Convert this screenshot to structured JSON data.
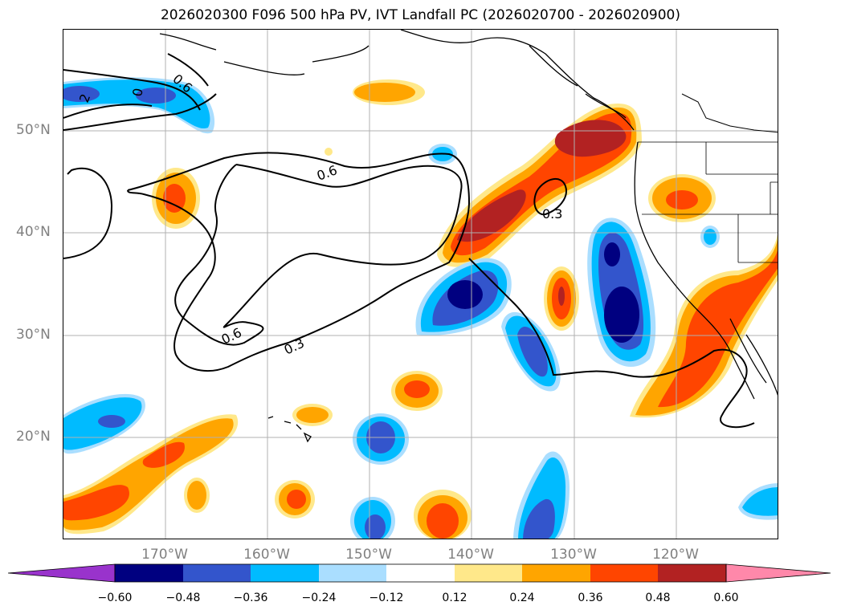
{
  "title": "2026020300 F096 500 hPa PV, IVT Landfall PC (2026020700 - 2026020900)",
  "lat_labels": [
    "50°N",
    "40°N",
    "30°N",
    "20°N"
  ],
  "lon_labels": [
    "170°W",
    "160°W",
    "150°W",
    "140°W",
    "130°W",
    "120°W"
  ],
  "contour_labels": [
    "0.6",
    "0.6",
    "0.6",
    "0.3",
    "0.3",
    "2",
    "0"
  ],
  "colorbar": {
    "ticks": [
      "−0.60",
      "−0.48",
      "−0.36",
      "−0.24",
      "−0.12",
      "0.12",
      "0.24",
      "0.36",
      "0.48",
      "0.60"
    ],
    "colors": [
      "#9933cc",
      "#000080",
      "#3355cc",
      "#00bbff",
      "#aadeff",
      "#ffffff",
      "#ffe88a",
      "#ffa500",
      "#ff4500",
      "#b22222",
      "#ff88aa"
    ]
  }
}
